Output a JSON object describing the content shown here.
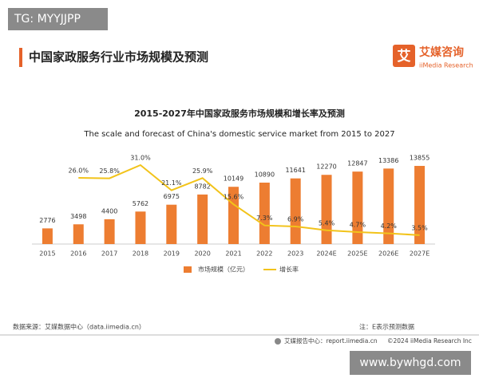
{
  "watermark_top": "TG: MYYJJPP",
  "header": {
    "title": "中国家政服务行业市场规模及预测"
  },
  "logo": {
    "icon": "艾",
    "name": "艾媒咨询",
    "sub": "iiMedia Research"
  },
  "chart_data": {
    "type": "bar",
    "title": "2015-2027年中国家政服务市场规模和增长率及预测",
    "subtitle": "The scale and forecast of China's domestic service market from 2015 to 2027",
    "categories": [
      "2015",
      "2016",
      "2017",
      "2018",
      "2019",
      "2020",
      "2021",
      "2022",
      "2023",
      "2024E",
      "2025E",
      "2026E",
      "2027E"
    ],
    "series": [
      {
        "name": "市场规模（亿元）",
        "type": "bar",
        "color": "#ed7d31",
        "values": [
          2776,
          3498,
          4400,
          5762,
          6975,
          8782,
          10149,
          10890,
          11641,
          12270,
          12847,
          13386,
          13855
        ]
      },
      {
        "name": "增长率",
        "type": "line",
        "axis": "y2",
        "color": "#f2c31a",
        "values": [
          null,
          26.0,
          25.8,
          31.0,
          21.1,
          25.9,
          15.6,
          7.3,
          6.9,
          5.4,
          4.7,
          4.2,
          3.5
        ],
        "value_labels": [
          null,
          "26.0%",
          "25.8%",
          "31.0%",
          "21.1%",
          "25.9%",
          "15.6%",
          "7.3%",
          "6.9%",
          "5.4%",
          "4.7%",
          "4.2%",
          "3.5%"
        ]
      }
    ],
    "ylim": [
      0,
      14000
    ],
    "y2lim": [
      0,
      31
    ],
    "legend": "bottom"
  },
  "source": "数据来源：艾媒数据中心（data.iimedia.cn）",
  "note": "注：E表示预测数据",
  "footer": {
    "center": "艾媒报告中心：report.iimedia.cn",
    "copyright": "©2024  iiMedia Research Inc"
  },
  "watermark_bottom": "www.bywhgd.com"
}
